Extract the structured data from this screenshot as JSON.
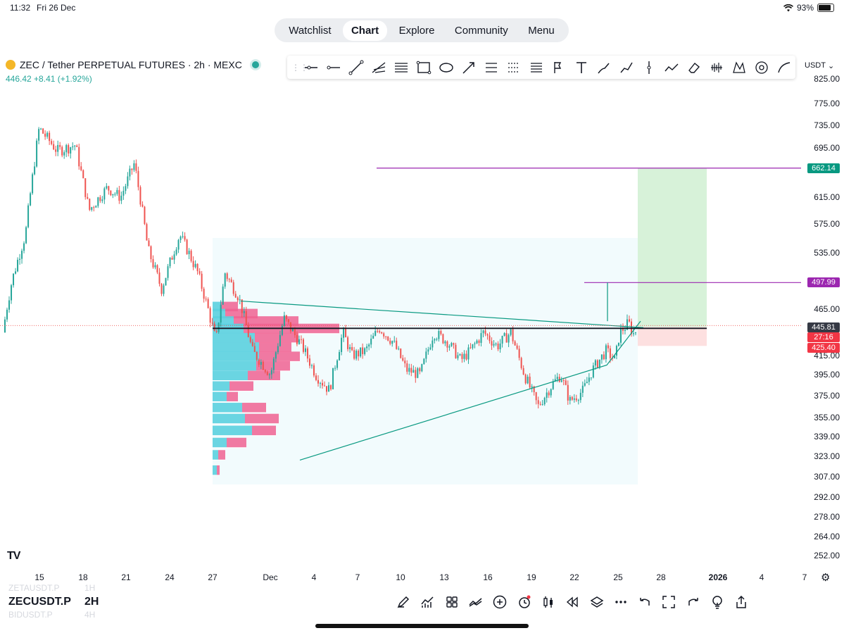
{
  "status_bar": {
    "time": "11:32",
    "date": "Fri 26 Dec",
    "battery": "93%"
  },
  "nav_tabs": [
    {
      "label": "Watchlist",
      "active": false
    },
    {
      "label": "Chart",
      "active": true
    },
    {
      "label": "Explore",
      "active": false
    },
    {
      "label": "Community",
      "active": false
    },
    {
      "label": "Menu",
      "active": false
    }
  ],
  "symbol_header": {
    "title": "ZEC / Tether PERPETUAL FUTURES · 2h · MEXC",
    "last_price": "446.42",
    "change": "+8.41 (+1.92%)"
  },
  "drawing_tools": [
    "cursor-icon",
    "horizontal-ray-icon",
    "horizontal-line-icon",
    "trend-line-icon",
    "pitchfork-icon",
    "parallel-channel-icon",
    "rectangle-icon",
    "ellipse-icon",
    "arrow-icon",
    "fib-retracement-icon",
    "fib-extension-icon",
    "anchored-vwap-icon",
    "text-icon",
    "brush-icon",
    "path-icon",
    "vertical-line-icon",
    "forecast-icon",
    "eraser-icon",
    "volume-profile-icon",
    "xabcd-pattern-icon",
    "target-icon",
    "curve-icon"
  ],
  "currency": "USDT",
  "colors": {
    "up": "#26a69a",
    "down": "#ef5350",
    "target": "#089981",
    "stop": "#f23645",
    "purple": "#9c27b0"
  },
  "price_axis": [
    "825.00",
    "775.00",
    "735.00",
    "695.00",
    "615.00",
    "575.00",
    "535.00",
    "497.99",
    "465.00",
    "445.81",
    "415.00",
    "395.00",
    "375.00",
    "355.00",
    "339.00",
    "323.00",
    "307.00",
    "292.00",
    "278.00",
    "264.00",
    "252.00"
  ],
  "price_tags": {
    "target": "662.14",
    "alert": "497.99",
    "current": "445.81",
    "countdown": "27:16",
    "stop": "425.40"
  },
  "date_axis": [
    "15",
    "18",
    "21",
    "24",
    "27",
    "Dec",
    "4",
    "7",
    "10",
    "13",
    "16",
    "19",
    "22",
    "25",
    "28",
    "2026",
    "4",
    "7"
  ],
  "bottom_bar": {
    "ticker": "ZECUSDT.P",
    "timeframe": "2H",
    "ghost_above": "ZETAUSDT.P",
    "ghost_above_tf": "1H",
    "ghost_below": "BIDUSDT.P",
    "ghost_below_tf": "4H",
    "tools": [
      "brush-icon",
      "indicators-icon",
      "grid-icon",
      "compare-icon",
      "add-icon",
      "alert-icon",
      "candles-icon",
      "replay-icon",
      "layers-icon",
      "more-icon",
      "undo-icon",
      "fullscreen-icon",
      "redo-icon",
      "idea-icon",
      "share-icon"
    ]
  },
  "chart_data": {
    "type": "candlestick",
    "symbol": "ZEC / Tether PERPETUAL FUTURES",
    "interval": "2h",
    "ylim": [
      252,
      825
    ],
    "y_axis_ticks": [
      825,
      775,
      735,
      695,
      615,
      575,
      535,
      465,
      415,
      395,
      375,
      355,
      339,
      323,
      307,
      292,
      278,
      264,
      252
    ],
    "x_ticks": [
      "15",
      "18",
      "21",
      "24",
      "27",
      "Dec",
      "4",
      "7",
      "10",
      "13",
      "16",
      "19",
      "22",
      "25",
      "28",
      "2026",
      "4",
      "7"
    ],
    "close_path": [
      [
        0,
        440
      ],
      [
        4,
        500
      ],
      [
        10,
        560
      ],
      [
        16,
        730
      ],
      [
        24,
        690
      ],
      [
        32,
        700
      ],
      [
        38,
        595
      ],
      [
        46,
        630
      ],
      [
        52,
        615
      ],
      [
        58,
        670
      ],
      [
        64,
        540
      ],
      [
        70,
        490
      ],
      [
        78,
        560
      ],
      [
        86,
        510
      ],
      [
        90,
        470
      ],
      [
        94,
        430
      ],
      [
        98,
        510
      ],
      [
        104,
        480
      ],
      [
        110,
        420
      ],
      [
        118,
        395
      ],
      [
        124,
        455
      ],
      [
        132,
        425
      ],
      [
        138,
        395
      ],
      [
        144,
        380
      ],
      [
        150,
        440
      ],
      [
        154,
        415
      ],
      [
        160,
        420
      ],
      [
        166,
        445
      ],
      [
        172,
        430
      ],
      [
        178,
        400
      ],
      [
        184,
        395
      ],
      [
        190,
        440
      ],
      [
        196,
        430
      ],
      [
        202,
        410
      ],
      [
        206,
        420
      ],
      [
        212,
        440
      ],
      [
        218,
        425
      ],
      [
        224,
        440
      ],
      [
        230,
        395
      ],
      [
        236,
        365
      ],
      [
        242,
        385
      ],
      [
        246,
        395
      ],
      [
        250,
        370
      ],
      [
        256,
        380
      ],
      [
        260,
        400
      ],
      [
        266,
        420
      ],
      [
        270,
        410
      ],
      [
        272,
        440
      ],
      [
        276,
        450
      ],
      [
        278,
        438
      ],
      [
        280,
        445
      ]
    ],
    "volume_profile": {
      "poc": 445,
      "bins": [
        {
          "price": 468,
          "up": 12,
          "down": 24
        },
        {
          "price": 460,
          "up": 18,
          "down": 46
        },
        {
          "price": 452,
          "up": 30,
          "down": 92
        },
        {
          "price": 444,
          "up": 44,
          "down": 136
        },
        {
          "price": 434,
          "up": 60,
          "down": 62
        },
        {
          "price": 424,
          "up": 66,
          "down": 46
        },
        {
          "price": 414,
          "up": 66,
          "down": 58
        },
        {
          "price": 404,
          "up": 62,
          "down": 48
        },
        {
          "price": 394,
          "up": 50,
          "down": 46
        },
        {
          "price": 384,
          "up": 24,
          "down": 34
        },
        {
          "price": 374,
          "up": 20,
          "down": 16
        },
        {
          "price": 364,
          "up": 42,
          "down": 34
        },
        {
          "price": 354,
          "up": 46,
          "down": 48
        },
        {
          "price": 344,
          "up": 56,
          "down": 34
        },
        {
          "price": 334,
          "up": 20,
          "down": 28
        },
        {
          "price": 324,
          "up": 8,
          "down": 10
        },
        {
          "price": 312,
          "up": 6,
          "down": 4
        }
      ]
    },
    "triangle": {
      "upper": [
        [
          342,
          475
        ],
        [
          1030,
          445
        ]
      ],
      "lower": [
        [
          426,
          320
        ],
        [
          1006,
          405
        ]
      ]
    },
    "position_tool": {
      "entry": 445.81,
      "target": 662.14,
      "stop": 425.4
    },
    "horizontal_lines": [
      662.14,
      497.99,
      445.81
    ]
  }
}
